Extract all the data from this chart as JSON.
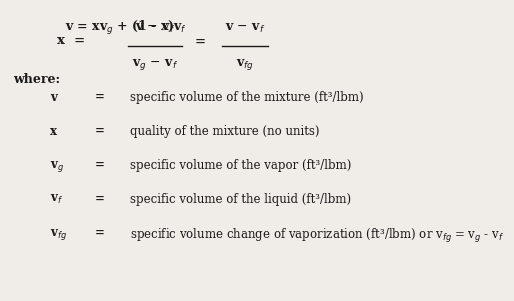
{
  "bg_color": "#f0ede8",
  "text_color": "#1a1a1a",
  "font_family": "DejaVu Serif",
  "font_size_eq": 9,
  "font_size_table": 8.5,
  "font_size_where": 9,
  "rows": [
    {
      "symbol": "v",
      "eq": "=",
      "desc": "specific volume of the mixture (ft³/lbm)"
    },
    {
      "symbol": "x",
      "eq": "=",
      "desc": "quality of the mixture (no units)"
    },
    {
      "symbol": "v$_g$",
      "eq": "=",
      "desc": "specific volume of the vapor (ft³/lbm)"
    },
    {
      "symbol": "v$_f$",
      "eq": "=",
      "desc": "specific volume of the liquid (ft³/lbm)"
    },
    {
      "symbol": "v$_{fg}$",
      "eq": "=",
      "desc": "specific volume change of vaporization (ft³/lbm) or v$_{fg}$ = v$_g$ - v$_f$"
    }
  ]
}
